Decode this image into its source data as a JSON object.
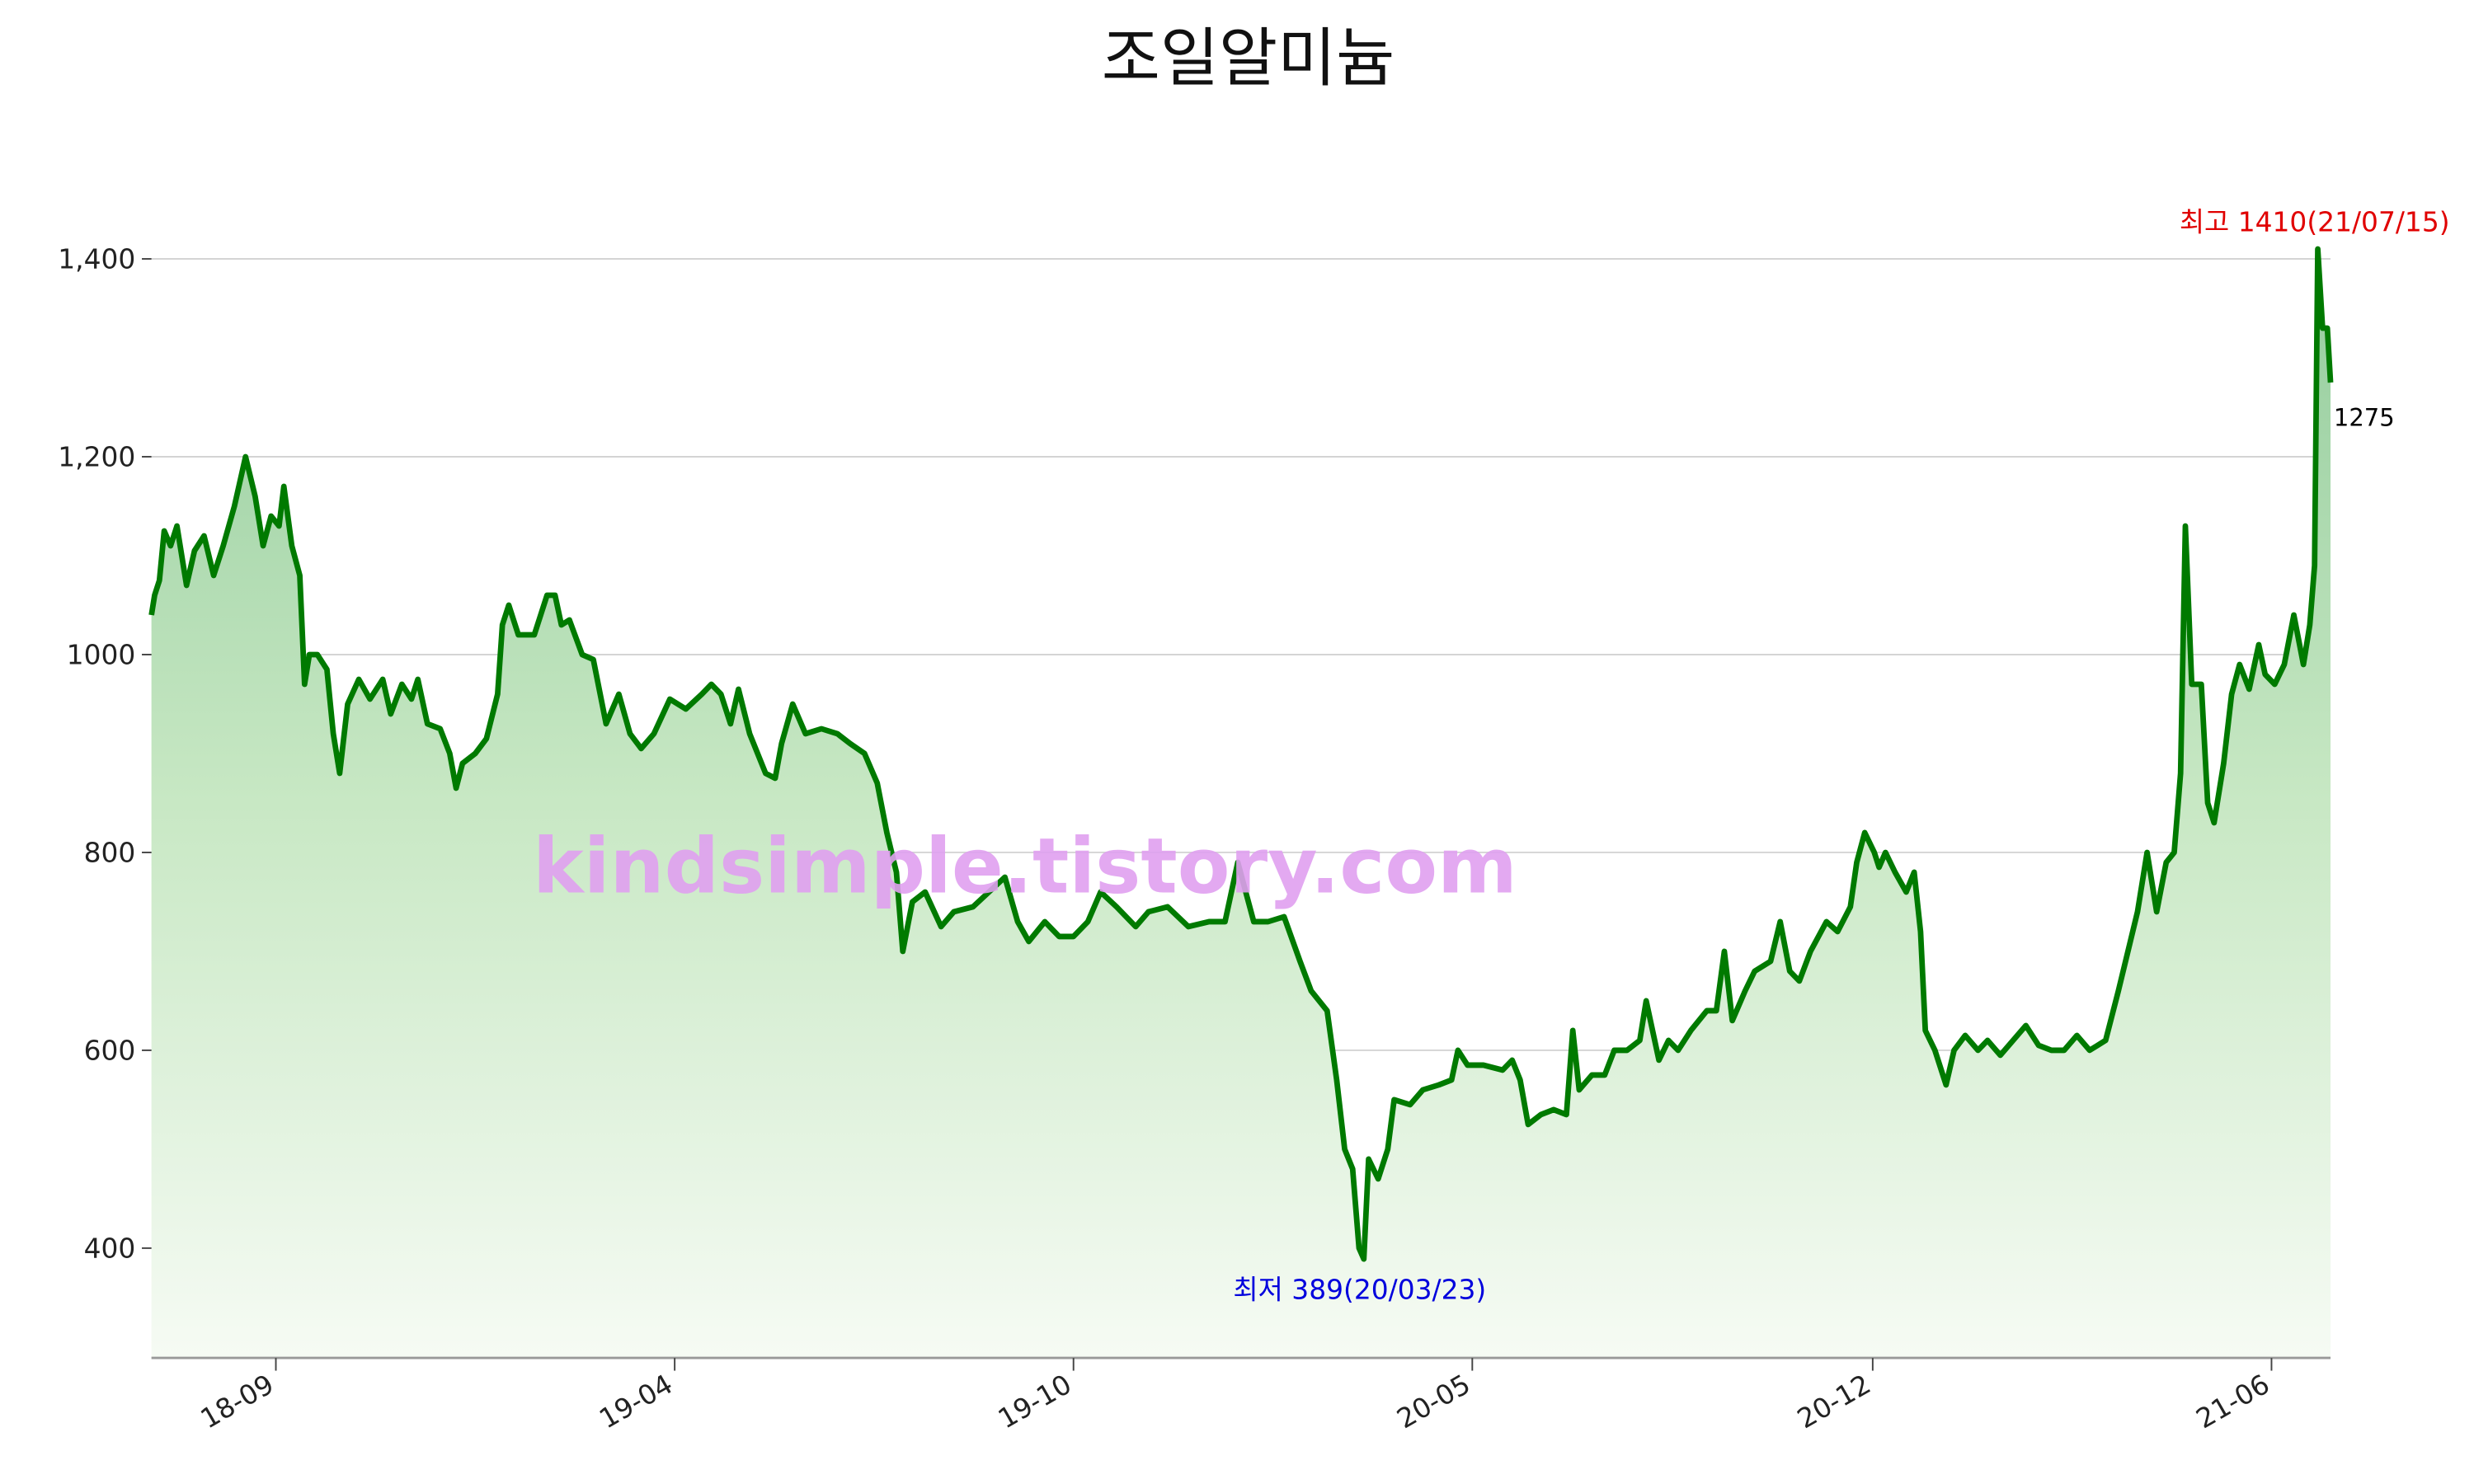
{
  "chart_data": {
    "type": "line",
    "title": "조일알미늄",
    "watermark": "kindsimple.tistory.com",
    "x": [
      0,
      2,
      5,
      8,
      12,
      16,
      22,
      27,
      33,
      39,
      45,
      52,
      59,
      65,
      70,
      75,
      80,
      83,
      88,
      93,
      96,
      99,
      104,
      110,
      114,
      118,
      123,
      130,
      137,
      145,
      150,
      157,
      163,
      167,
      173,
      181,
      187,
      191,
      195,
      203,
      210,
      217,
      220,
      224,
      230,
      240,
      248,
      253,
      257,
      262,
      270,
      277,
      285,
      293,
      300,
      307,
      315,
      325,
      335,
      345,
      351,
      357,
      363,
      368,
      375,
      385,
      391,
      395,
      402,
      410,
      420,
      430,
      438,
      447,
      455,
      461,
      467,
      471,
      477,
      485,
      495,
      503,
      515,
      525,
      535,
      543,
      550,
      560,
      569,
      578,
      587,
      595,
      605,
      617,
      625,
      637,
      650,
      663,
      673,
      681,
      691,
      700,
      710,
      720,
      727,
      737,
      743,
      748,
      753,
      757,
      760,
      763,
      769,
      775,
      779,
      789,
      797,
      807,
      815,
      819,
      825,
      835,
      847,
      853,
      858,
      863,
      871,
      879,
      887,
      891,
      895,
      903,
      911,
      917,
      925,
      933,
      937,
      945,
      951,
      957,
      965,
      975,
      981,
      986,
      991,
      999,
      1005,
      1015,
      1021,
      1027,
      1033,
      1040,
      1050,
      1057,
      1065,
      1069,
      1074,
      1080,
      1083,
      1087,
      1093,
      1100,
      1105,
      1109,
      1112,
      1118,
      1125,
      1130,
      1137,
      1145,
      1151,
      1159,
      1167,
      1175,
      1183,
      1191,
      1199,
      1207,
      1215,
      1225,
      1233,
      1239,
      1245,
      1251,
      1257,
      1263,
      1268,
      1272,
      1275,
      1279,
      1285,
      1289,
      1293,
      1299,
      1304,
      1309,
      1315,
      1321,
      1325,
      1331,
      1337,
      1343,
      1349,
      1353,
      1356,
      1358,
      1361,
      1364,
      1366
    ],
    "series": [
      {
        "color": "#007a00",
        "values": [
          1040,
          1060,
          1075,
          1125,
          1110,
          1130,
          1070,
          1105,
          1120,
          1080,
          1110,
          1150,
          1200,
          1160,
          1110,
          1140,
          1130,
          1170,
          1110,
          1080,
          970,
          1000,
          1000,
          985,
          920,
          880,
          950,
          975,
          955,
          975,
          940,
          970,
          955,
          975,
          930,
          925,
          900,
          865,
          890,
          900,
          915,
          960,
          1030,
          1050,
          1020,
          1020,
          1060,
          1060,
          1030,
          1035,
          1000,
          995,
          930,
          960,
          920,
          905,
          920,
          955,
          945,
          960,
          970,
          960,
          930,
          965,
          920,
          880,
          875,
          910,
          950,
          920,
          925,
          920,
          910,
          900,
          870,
          820,
          780,
          700,
          750,
          760,
          725,
          740,
          745,
          760,
          775,
          730,
          710,
          730,
          715,
          715,
          730,
          760,
          745,
          725,
          740,
          745,
          725,
          730,
          730,
          790,
          730,
          730,
          735,
          690,
          660,
          640,
          570,
          500,
          480,
          400,
          389,
          490,
          470,
          500,
          550,
          545,
          560,
          565,
          570,
          600,
          585,
          585,
          580,
          590,
          570,
          525,
          535,
          540,
          535,
          620,
          560,
          575,
          575,
          600,
          600,
          610,
          650,
          590,
          610,
          600,
          620,
          640,
          640,
          700,
          630,
          660,
          680,
          690,
          730,
          680,
          670,
          700,
          730,
          720,
          745,
          790,
          820,
          800,
          785,
          800,
          780,
          760,
          780,
          720,
          620,
          600,
          565,
          600,
          615,
          600,
          610,
          595,
          610,
          625,
          605,
          600,
          600,
          615,
          600,
          610,
          660,
          700,
          740,
          800,
          740,
          790,
          800,
          880,
          1130,
          970,
          970,
          850,
          830,
          890,
          960,
          990,
          965,
          1010,
          980,
          970,
          990,
          1040,
          990,
          1030,
          1090,
          1410,
          1330,
          1330,
          1275
        ]
      }
    ],
    "xlim": [
      0,
      1366
    ],
    "xticks": [
      {
        "value": 78,
        "label": "18-09"
      },
      {
        "value": 328,
        "label": "19-04"
      },
      {
        "value": 578,
        "label": "19-10"
      },
      {
        "value": 828,
        "label": "20-05"
      },
      {
        "value": 1079,
        "label": "20-12"
      },
      {
        "value": 1329,
        "label": "21-06"
      }
    ],
    "ylim": [
      289,
      1465
    ],
    "yticks": [
      400,
      600,
      800,
      1000,
      {
        "value": 1200,
        "label": "1,200"
      },
      {
        "value": 1400,
        "label": "1,400"
      }
    ],
    "grid": true,
    "annotations": [
      {
        "text": "최고 1410(21/07/15)",
        "color": "#e00000"
      },
      {
        "text": "최저 389(20/03/23)",
        "color": "#0000dd"
      },
      {
        "text": "1275",
        "color": "#000000"
      }
    ]
  }
}
